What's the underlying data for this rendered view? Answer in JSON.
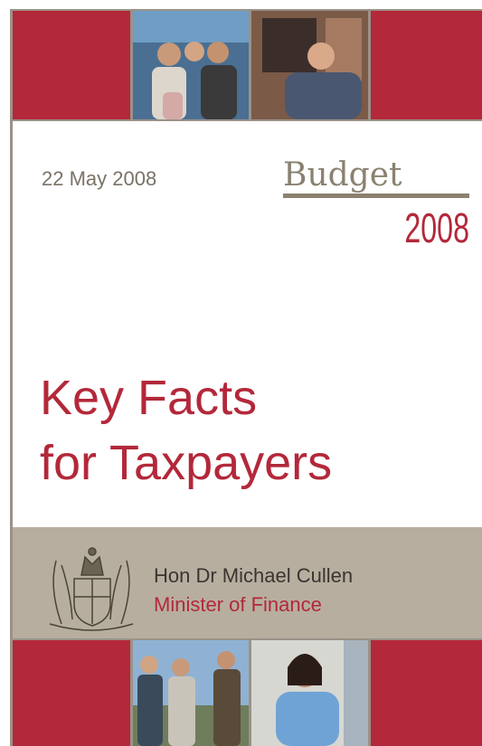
{
  "header": {
    "date": "22 May 2008",
    "budget_word": "Budget",
    "budget_year": "2008"
  },
  "title": {
    "line1": "Key Facts",
    "line2": "for Taxpayers"
  },
  "minister": {
    "name": "Hon Dr Michael Cullen",
    "role": "Minister of Finance"
  }
}
